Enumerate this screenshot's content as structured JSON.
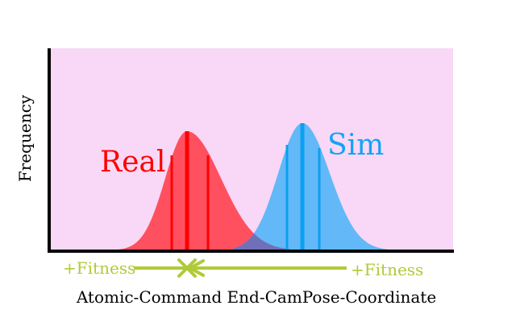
{
  "colors": {
    "background": "#ffffff",
    "plot_area": "#f8d8f6",
    "axis": "#000000",
    "real_fill": "#ff5060",
    "real_line": "#ff0000",
    "sim_fill": "#63b8f8",
    "sim_line": "#0aa0f0",
    "overlap_fill": "#7070b8",
    "fitness": "#afcb37"
  },
  "axes": {
    "y_label": "Frequency",
    "x_label": "Atomic-Command End-CamPose-Coordinate"
  },
  "distributions": [
    {
      "key": "real",
      "label": "Real",
      "color": "#ff0000"
    },
    {
      "key": "sim",
      "label": "Sim",
      "color": "#12a4f4"
    }
  ],
  "fitness_indicator": {
    "left_label": "+Fitness",
    "right_label": "+Fitness",
    "center_marker": "x-marker-icon",
    "arrow_direction": "left",
    "color": "#afcb37"
  }
}
